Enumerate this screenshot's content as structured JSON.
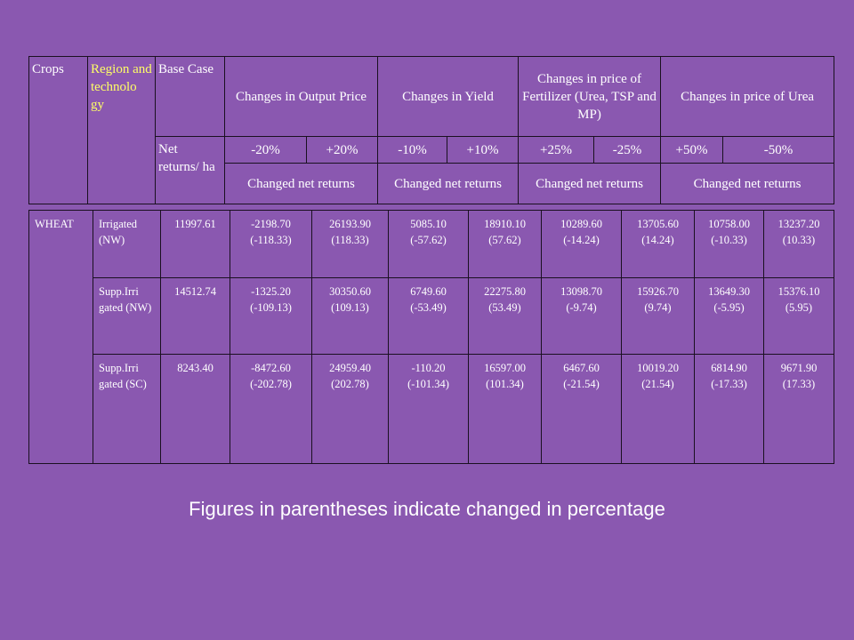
{
  "header": {
    "crops": "Crops",
    "region": "Region and technolo gy",
    "base_case": "Base Case",
    "net_returns": "Net returns/ ha",
    "groups": [
      {
        "title": "Changes in Output Price",
        "cols": [
          "-20%",
          "+20%"
        ],
        "sub": "Changed net returns"
      },
      {
        "title": "Changes in Yield",
        "cols": [
          "-10%",
          "+10%"
        ],
        "sub": "Changed net returns"
      },
      {
        "title": "Changes in price of Fertilizer (Urea, TSP and MP)",
        "cols": [
          "+25%",
          "-25%"
        ],
        "sub": "Changed net returns"
      },
      {
        "title": "Changes in price of Urea",
        "cols": [
          "+50%",
          "-50%"
        ],
        "sub": "Changed net returns"
      }
    ]
  },
  "data": {
    "crop": "WHEAT",
    "rows": [
      {
        "region": "Irrigated (NW)",
        "base": "11997.61",
        "values": [
          [
            "-2198.70",
            "(-118.33)"
          ],
          [
            "26193.90",
            "(118.33)"
          ],
          [
            "5085.10",
            "(-57.62)"
          ],
          [
            "18910.10",
            "(57.62)"
          ],
          [
            "10289.60",
            "(-14.24)"
          ],
          [
            "13705.60",
            "(14.24)"
          ],
          [
            "10758.00",
            "(-10.33)"
          ],
          [
            "13237.20",
            "(10.33)"
          ]
        ]
      },
      {
        "region": "Supp.Irri gated (NW)",
        "base": "14512.74",
        "values": [
          [
            "-1325.20",
            "(-109.13)"
          ],
          [
            "30350.60",
            "(109.13)"
          ],
          [
            "6749.60",
            "(-53.49)"
          ],
          [
            "22275.80",
            "(53.49)"
          ],
          [
            "13098.70",
            "(-9.74)"
          ],
          [
            "15926.70",
            "(9.74)"
          ],
          [
            "13649.30",
            "(-5.95)"
          ],
          [
            "15376.10",
            "(5.95)"
          ]
        ]
      },
      {
        "region": "Supp.Irri gated (SC)",
        "base": "8243.40",
        "values": [
          [
            "-8472.60",
            "(-202.78)"
          ],
          [
            "24959.40",
            "(202.78)"
          ],
          [
            "-110.20",
            "(-101.34)"
          ],
          [
            "16597.00",
            "(101.34)"
          ],
          [
            "6467.60",
            "(-21.54)"
          ],
          [
            "10019.20",
            "(21.54)"
          ],
          [
            "6814.90",
            "(-17.33)"
          ],
          [
            "9671.90",
            "(17.33)"
          ]
        ]
      }
    ]
  },
  "footnote": "Figures in parentheses indicate changed in percentage"
}
